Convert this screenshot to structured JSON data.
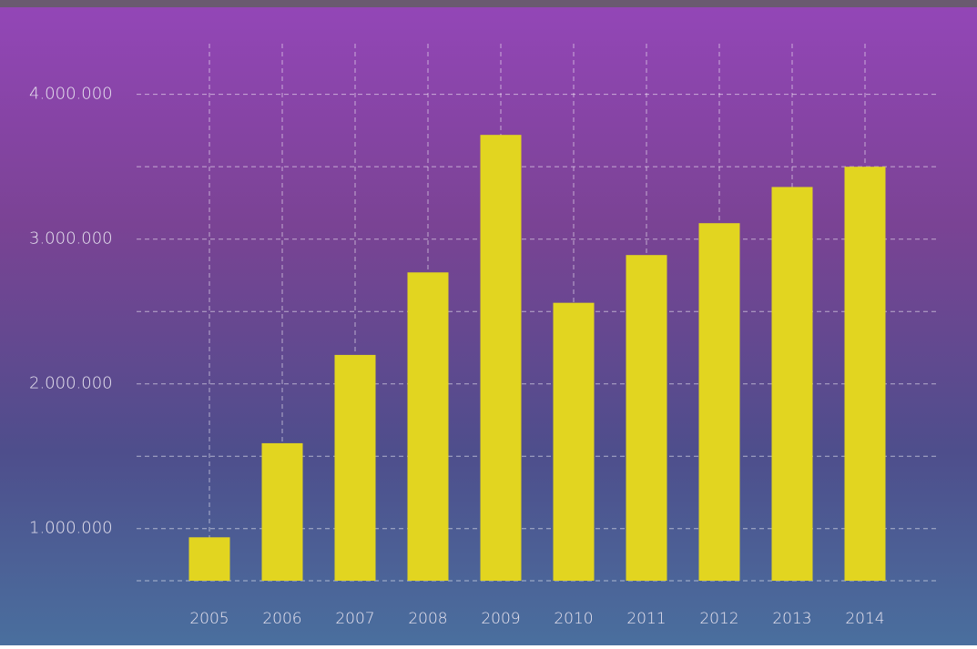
{
  "chart_data": {
    "type": "bar",
    "categories": [
      "2005",
      "2006",
      "2007",
      "2008",
      "2009",
      "2010",
      "2011",
      "2012",
      "2013",
      "2014"
    ],
    "values": [
      940000,
      1590000,
      2200000,
      2770000,
      3720000,
      2560000,
      2890000,
      3110000,
      3360000,
      3500000
    ],
    "color": "#e2d520",
    "ylim": [
      640000,
      4350000
    ],
    "yticks": [
      {
        "value": 1000000,
        "label": "1.000.000"
      },
      {
        "value": 2000000,
        "label": "2.000.000"
      },
      {
        "value": 3000000,
        "label": "3.000.000"
      },
      {
        "value": 4000000,
        "label": "4.000.000"
      }
    ],
    "yminorticks": [
      640000,
      1500000,
      2500000,
      3500000
    ],
    "grid": true
  }
}
